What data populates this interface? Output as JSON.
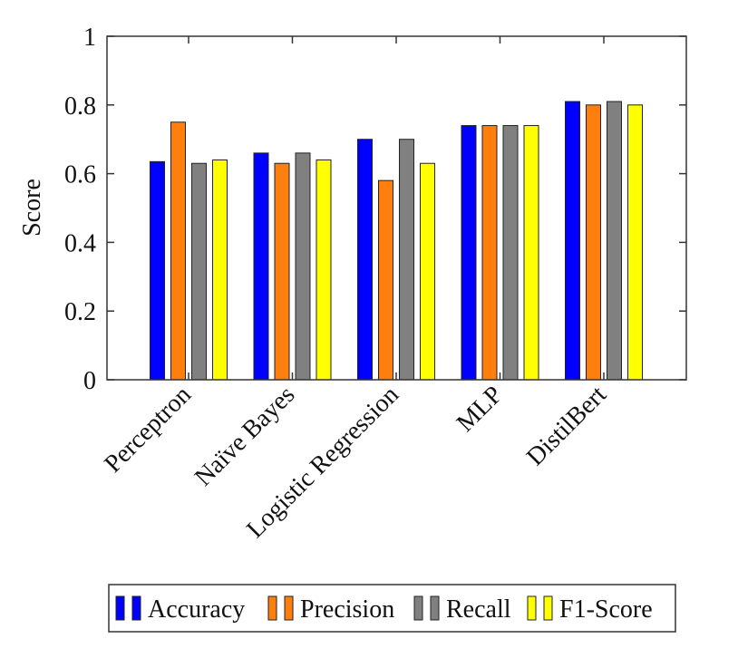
{
  "chart_data": {
    "type": "bar",
    "title": "",
    "xlabel": "",
    "ylabel": "Score",
    "ylim": [
      0,
      1
    ],
    "yticks": [
      0,
      0.2,
      0.4,
      0.6,
      0.8,
      1
    ],
    "ytick_labels": [
      "0",
      "0.2",
      "0.4",
      "0.6",
      "0.8",
      "1"
    ],
    "categories": [
      "Perceptron",
      "Naïve Bayes",
      "Logistic Regression",
      "MLP",
      "DistilBert"
    ],
    "series": [
      {
        "name": "Accuracy",
        "color": "#0000ff",
        "values": [
          0.635,
          0.66,
          0.7,
          0.74,
          0.81
        ]
      },
      {
        "name": "Precision",
        "color": "#ff7f0e",
        "values": [
          0.75,
          0.63,
          0.58,
          0.74,
          0.8
        ]
      },
      {
        "name": "Recall",
        "color": "#808080",
        "values": [
          0.63,
          0.66,
          0.7,
          0.74,
          0.81
        ]
      },
      {
        "name": "F1-Score",
        "color": "#ffff00",
        "values": [
          0.64,
          0.64,
          0.63,
          0.74,
          0.8
        ]
      }
    ],
    "grid": false,
    "legend_position": "bottom-center"
  }
}
